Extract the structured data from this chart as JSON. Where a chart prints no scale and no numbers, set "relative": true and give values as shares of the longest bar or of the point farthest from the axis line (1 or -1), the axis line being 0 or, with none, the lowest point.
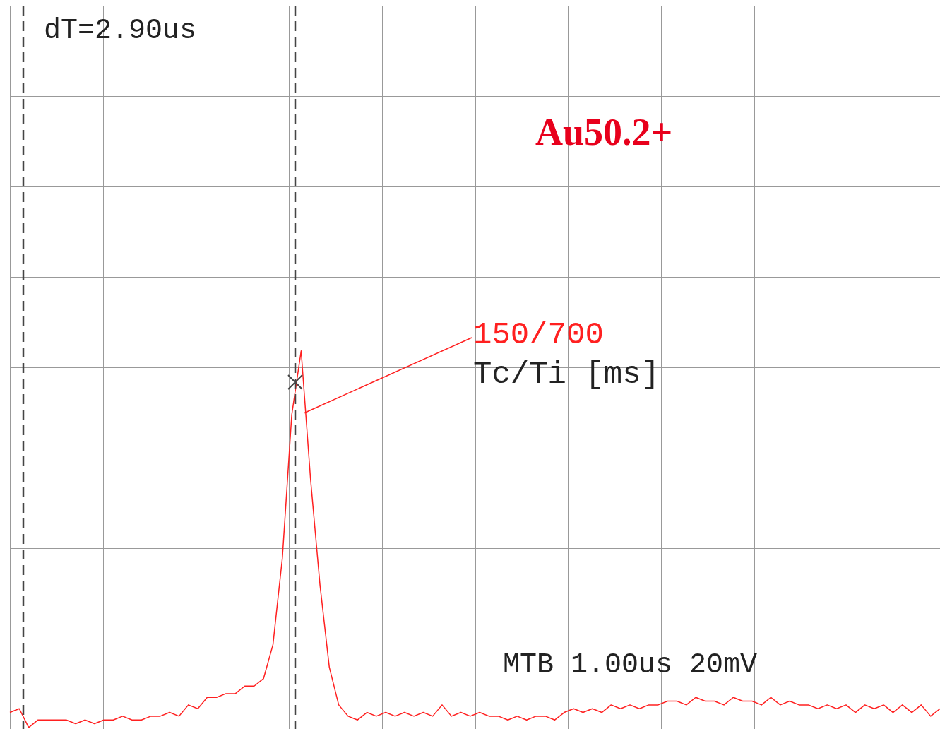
{
  "chart_data": {
    "type": "line",
    "relative": true,
    "grid": true,
    "line_style": "solid",
    "categories": [
      null,
      null,
      null,
      null,
      null,
      null,
      null,
      null,
      null,
      null,
      null,
      null,
      null,
      null,
      null,
      null,
      null,
      null,
      null,
      null,
      null,
      null,
      null,
      null,
      null,
      null,
      null,
      null,
      null,
      null,
      null,
      null,
      null,
      null,
      null,
      null,
      null,
      null,
      null,
      null,
      null,
      null,
      null,
      null,
      null,
      null,
      null,
      null,
      null,
      null,
      null,
      null,
      null,
      null,
      null,
      null,
      null,
      null,
      null,
      null,
      null,
      null,
      null,
      null,
      null,
      null,
      null,
      null,
      null,
      null,
      null,
      null,
      null,
      null,
      null,
      null,
      null,
      null,
      null,
      null,
      null,
      null,
      null,
      null,
      null,
      null,
      null,
      null,
      null,
      null,
      null,
      null,
      null,
      null,
      null,
      null,
      null,
      null,
      null,
      null
    ],
    "series": [
      {
        "color": "#ff2020",
        "values": [
          0.04,
          0.05,
          0,
          0.02,
          0.02,
          0.02,
          0.02,
          0.01,
          0.02,
          0.01,
          0.02,
          0.02,
          0.03,
          0.02,
          0.02,
          0.03,
          0.03,
          0.04,
          0.03,
          0.06,
          0.05,
          0.08,
          0.08,
          0.09,
          0.09,
          0.11,
          0.11,
          0.13,
          0.22,
          0.45,
          0.83,
          1,
          0.66,
          0.38,
          0.16,
          0.06,
          0.03,
          0.02,
          0.04,
          0.03,
          0.04,
          0.03,
          0.04,
          0.03,
          0.04,
          0.03,
          0.06,
          0.03,
          0.04,
          0.03,
          0.04,
          0.03,
          0.03,
          0.02,
          0.03,
          0.02,
          0.03,
          0.03,
          0.02,
          0.04,
          0.05,
          0.04,
          0.05,
          0.04,
          0.06,
          0.05,
          0.06,
          0.05,
          0.06,
          0.06,
          0.07,
          0.07,
          0.06,
          0.08,
          0.07,
          0.07,
          0.06,
          0.08,
          0.07,
          0.07,
          0.06,
          0.08,
          0.06,
          0.07,
          0.06,
          0.06,
          0.05,
          0.06,
          0.05,
          0.06,
          0.04,
          0.06,
          0.05,
          0.06,
          0.04,
          0.06,
          0.04,
          0.06,
          0.03,
          0.05
        ]
      }
    ],
    "annotations": [
      "dT=2.90us",
      "Au50.2+",
      "150/700",
      "Tc/Ti [ms]",
      "MTB 1.00us   20mV"
    ]
  }
}
